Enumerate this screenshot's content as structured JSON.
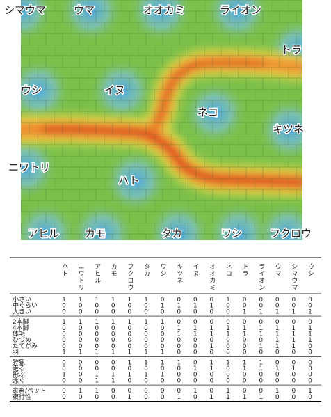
{
  "map": {
    "labels": [
      "シマウマ",
      "ウマ",
      "オオカミ",
      "ライオン",
      "トラ",
      "ウシ",
      "イヌ",
      "ネコ",
      "キツネ",
      "ニワトリ",
      "ハト",
      "アヒル",
      "カモ",
      "タカ",
      "ワシ",
      "フクロウ"
    ]
  },
  "table": {
    "columns": [
      "ハト",
      "ニワトリ",
      "アヒル",
      "カモ",
      "フクロウ",
      "タカ",
      "ワシ",
      "キツネ",
      "イヌ",
      "オオカミ",
      "ネコ",
      "トラ",
      "ライオン",
      "ウマ",
      "シマウマ",
      "ウシ"
    ],
    "groups": [
      [
        {
          "label": "小さい",
          "values": [
            1,
            1,
            1,
            1,
            1,
            1,
            0,
            0,
            0,
            0,
            1,
            0,
            0,
            0,
            0,
            0
          ]
        },
        {
          "label": "中ぐらい",
          "values": [
            0,
            0,
            0,
            0,
            0,
            0,
            1,
            1,
            1,
            1,
            0,
            0,
            0,
            0,
            0,
            0
          ]
        },
        {
          "label": "大きい",
          "values": [
            0,
            0,
            0,
            0,
            0,
            0,
            0,
            0,
            0,
            0,
            0,
            1,
            1,
            1,
            1,
            1
          ]
        }
      ],
      [
        {
          "label": "2本脚",
          "values": [
            1,
            1,
            1,
            1,
            1,
            1,
            1,
            0,
            0,
            0,
            0,
            0,
            0,
            0,
            0,
            0
          ]
        },
        {
          "label": "4本脚",
          "values": [
            0,
            0,
            0,
            0,
            0,
            0,
            0,
            1,
            1,
            1,
            1,
            1,
            1,
            1,
            1,
            1
          ]
        },
        {
          "label": "体毛",
          "values": [
            0,
            0,
            0,
            0,
            0,
            0,
            0,
            1,
            1,
            1,
            1,
            1,
            1,
            1,
            1,
            1
          ]
        },
        {
          "label": "ひづめ",
          "values": [
            0,
            0,
            0,
            0,
            0,
            0,
            0,
            0,
            0,
            0,
            0,
            0,
            0,
            1,
            1,
            1
          ]
        },
        {
          "label": "たてがみ",
          "values": [
            0,
            0,
            0,
            0,
            0,
            0,
            0,
            0,
            0,
            1,
            0,
            0,
            1,
            1,
            1,
            0
          ]
        },
        {
          "label": "羽",
          "values": [
            1,
            1,
            1,
            1,
            1,
            1,
            1,
            0,
            0,
            0,
            0,
            0,
            0,
            0,
            0,
            0
          ]
        }
      ],
      [
        {
          "label": "狩猟",
          "values": [
            0,
            0,
            0,
            0,
            1,
            1,
            1,
            1,
            0,
            1,
            1,
            1,
            1,
            0,
            0,
            0
          ]
        },
        {
          "label": "走る",
          "values": [
            0,
            0,
            0,
            0,
            0,
            0,
            0,
            0,
            1,
            1,
            0,
            1,
            1,
            1,
            1,
            0
          ]
        },
        {
          "label": "飛ぶ",
          "values": [
            1,
            0,
            1,
            1,
            1,
            1,
            1,
            0,
            0,
            0,
            0,
            0,
            0,
            0,
            0,
            0
          ]
        },
        {
          "label": "泳ぐ",
          "values": [
            0,
            0,
            1,
            1,
            0,
            0,
            0,
            0,
            0,
            0,
            0,
            0,
            0,
            0,
            0,
            0
          ]
        }
      ],
      [
        {
          "label": "家畜/ペット",
          "values": [
            0,
            1,
            1,
            0,
            0,
            0,
            0,
            0,
            1,
            0,
            1,
            0,
            0,
            1,
            0,
            1
          ]
        },
        {
          "label": "夜行性",
          "values": [
            0,
            0,
            0,
            0,
            1,
            0,
            0,
            1,
            0,
            1,
            1,
            1,
            1,
            0,
            0,
            0
          ]
        }
      ]
    ]
  }
}
